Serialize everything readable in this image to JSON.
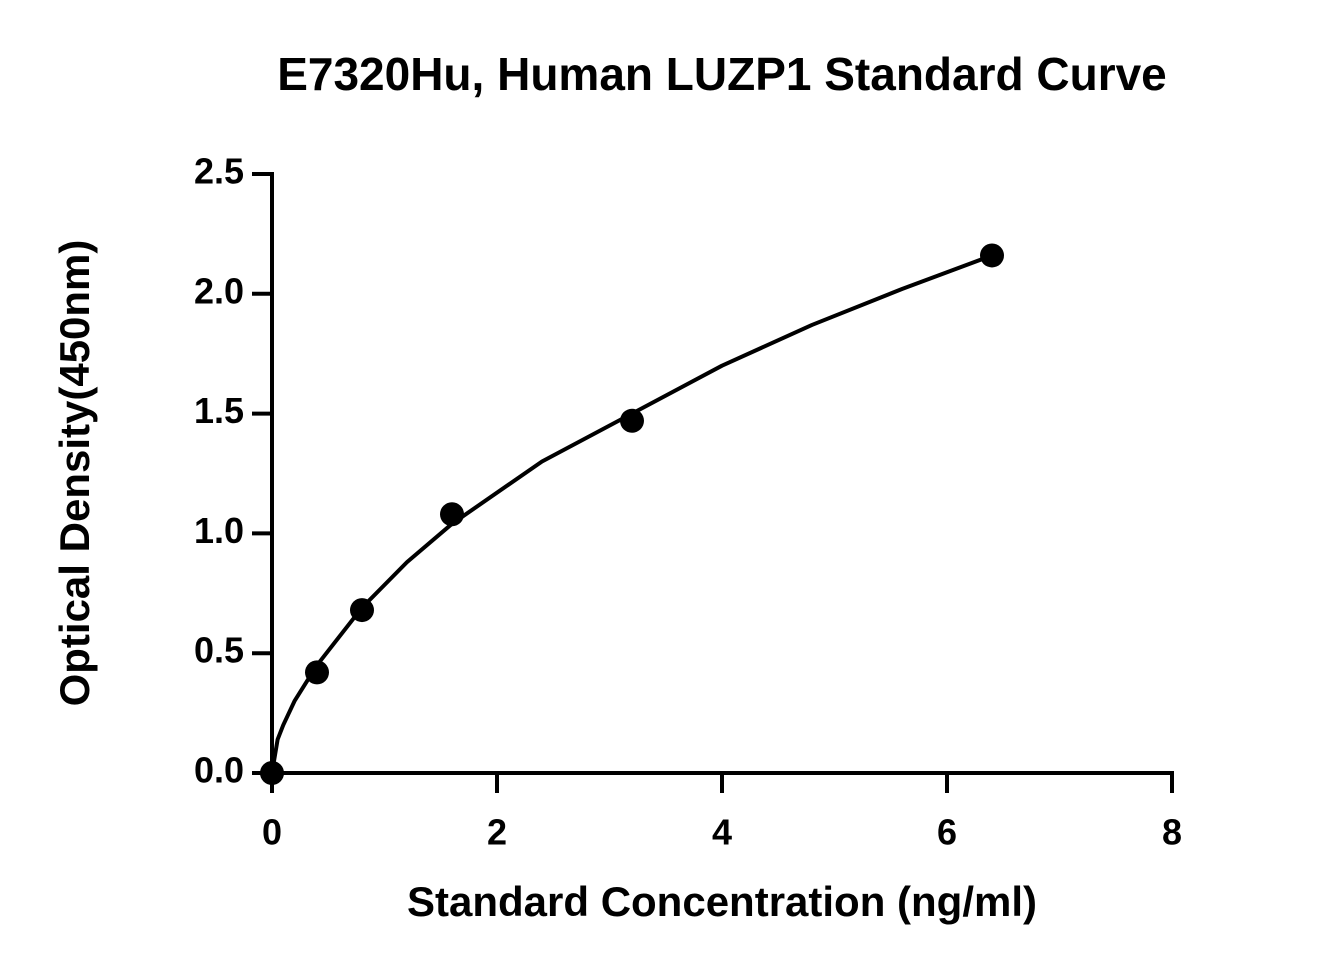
{
  "chart_data": {
    "type": "scatter",
    "title": "E7320Hu, Human LUZP1 Standard Curve",
    "xlabel": "Standard Concentration (ng/ml)",
    "ylabel": "Optical Density(450nm)",
    "xlim": [
      0,
      8
    ],
    "xticks": [
      0,
      2,
      4,
      6,
      8
    ],
    "ylim": [
      0,
      2.5
    ],
    "yticks": [
      {
        "value": 0,
        "label": "0.0"
      },
      {
        "value": 0.5,
        "label": "0.5"
      },
      {
        "value": 1,
        "label": "1.0"
      },
      {
        "value": 1.5,
        "label": "1.5"
      },
      {
        "value": 2,
        "label": "2.0"
      },
      {
        "value": 2.5,
        "label": "2.5"
      }
    ],
    "series": [
      {
        "type": "scatter",
        "color": "#000000",
        "x": [
          0,
          0.4,
          0.8,
          1.6,
          3.2,
          6.4
        ],
        "values": [
          0,
          0.42,
          0.68,
          1.08,
          1.47,
          2.16
        ]
      },
      {
        "type": "line",
        "color": "#000000",
        "x": [
          0,
          0.05,
          0.1,
          0.2,
          0.4,
          0.8,
          1.2,
          1.6,
          2.4,
          3.2,
          4,
          4.8,
          5.6,
          6.4
        ],
        "values": [
          0,
          0.14,
          0.2,
          0.3,
          0.45,
          0.69,
          0.88,
          1.04,
          1.3,
          1.5,
          1.7,
          1.87,
          2.02,
          2.16
        ]
      }
    ]
  }
}
